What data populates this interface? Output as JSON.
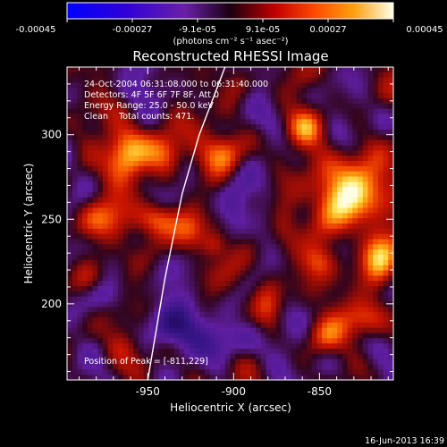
{
  "colorbar": {
    "ticks": [
      "-0.00045",
      "-0.00027",
      "-9.1e-05",
      "9.1e-05",
      "0.00027",
      "0.00045"
    ],
    "unit": "(photons cm⁻² s⁻¹ asec⁻²)",
    "range": [
      -0.00045,
      0.00045
    ]
  },
  "chart_data": {
    "type": "heatmap",
    "title": "Reconstructed RHESSI Image",
    "xlabel": "Heliocentric X (arcsec)",
    "ylabel": "Heliocentric Y (arcsec)",
    "xlim": [
      -997,
      -807
    ],
    "ylim": [
      155,
      340
    ],
    "x_ticks": [
      -950,
      -900,
      -850
    ],
    "y_ticks": [
      200,
      250,
      300
    ],
    "x_tick_labels": [
      "-950",
      "-900",
      "-850"
    ],
    "y_tick_labels": [
      "200",
      "250",
      "300"
    ],
    "info_lines": [
      "24-Oct-2004 06:31:08.000 to 06:31:40.000",
      "Detectors: 4F 5F 6F 7F 8F, Att 0",
      "Energy Range: 25.0 - 50.0 keV",
      "Clean    Total counts: 471."
    ],
    "peak_label": "Position of Peak = [-811,229]",
    "peak": [
      -811,
      229
    ],
    "limb": [
      [
        -950,
        155
      ],
      [
        -940,
        215
      ],
      [
        -930,
        265
      ],
      [
        -920,
        300
      ],
      [
        -905,
        340
      ]
    ],
    "blobs": [
      {
        "x": -963,
        "y": 287,
        "sx": 9,
        "sy": 12,
        "a": 0.9
      },
      {
        "x": -940,
        "y": 289,
        "sx": 8,
        "sy": 9,
        "a": 0.75
      },
      {
        "x": -980,
        "y": 250,
        "sx": 9,
        "sy": 8,
        "a": 0.45
      },
      {
        "x": -945,
        "y": 250,
        "sx": 9,
        "sy": 7,
        "a": 0.75
      },
      {
        "x": -925,
        "y": 243,
        "sx": 7,
        "sy": 8,
        "a": 0.5
      },
      {
        "x": -905,
        "y": 290,
        "sx": 8,
        "sy": 8,
        "a": 0.55
      },
      {
        "x": -898,
        "y": 330,
        "sx": 7,
        "sy": 7,
        "a": 0.4
      },
      {
        "x": -985,
        "y": 215,
        "sx": 7,
        "sy": 8,
        "a": 0.35
      },
      {
        "x": -912,
        "y": 235,
        "sx": 5,
        "sy": 5,
        "a": 0.3
      },
      {
        "x": -880,
        "y": 200,
        "sx": 6,
        "sy": 12,
        "a": 0.4
      },
      {
        "x": -870,
        "y": 245,
        "sx": 7,
        "sy": 12,
        "a": 0.45
      },
      {
        "x": -858,
        "y": 305,
        "sx": 8,
        "sy": 8,
        "a": 0.6
      },
      {
        "x": -840,
        "y": 260,
        "sx": 10,
        "sy": 12,
        "a": 0.55
      },
      {
        "x": -825,
        "y": 270,
        "sx": 12,
        "sy": 16,
        "a": 0.85
      },
      {
        "x": -815,
        "y": 228,
        "sx": 8,
        "sy": 12,
        "a": 1.0
      },
      {
        "x": -822,
        "y": 190,
        "sx": 9,
        "sy": 8,
        "a": 0.55
      },
      {
        "x": -848,
        "y": 180,
        "sx": 8,
        "sy": 8,
        "a": 0.45
      },
      {
        "x": -850,
        "y": 225,
        "sx": 7,
        "sy": 7,
        "a": 0.45
      },
      {
        "x": -965,
        "y": 175,
        "sx": 7,
        "sy": 7,
        "a": 0.2
      },
      {
        "x": -935,
        "y": 185,
        "sx": 10,
        "sy": 9,
        "a": -0.55
      },
      {
        "x": -905,
        "y": 178,
        "sx": 10,
        "sy": 9,
        "a": -0.45
      },
      {
        "x": -900,
        "y": 255,
        "sx": 6,
        "sy": 12,
        "a": -0.3
      },
      {
        "x": -958,
        "y": 325,
        "sx": 8,
        "sy": 6,
        "a": -0.25
      },
      {
        "x": -975,
        "y": 205,
        "sx": 7,
        "sy": 6,
        "a": -0.2
      }
    ],
    "noise": {
      "seed": 7,
      "amplitude": 0.22,
      "bias": -0.05
    }
  },
  "footer": {
    "date": "16-Jun-2013 16:39"
  }
}
